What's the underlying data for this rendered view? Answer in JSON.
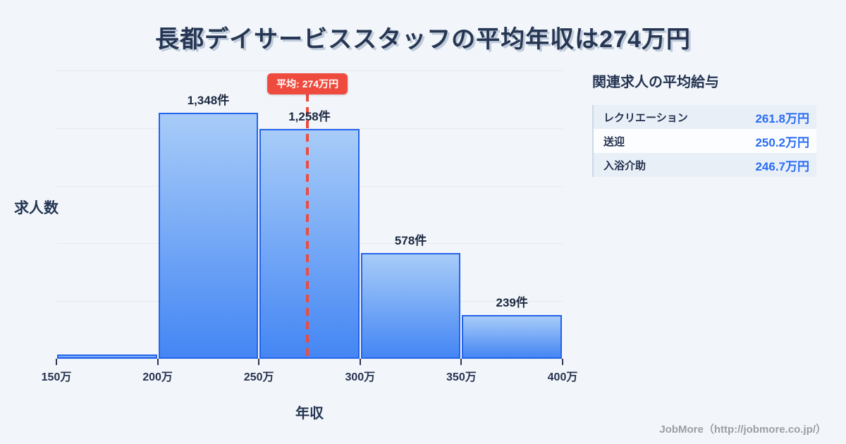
{
  "title": "長都デイサービススタッフの平均年収は274万円",
  "chart_data": {
    "type": "bar",
    "subtype": "histogram",
    "title": "長都デイサービススタッフの平均年収は274万円",
    "xlabel": "年収",
    "ylabel": "求人数",
    "x_ticks": [
      "150万",
      "200万",
      "250万",
      "300万",
      "350万",
      "400万"
    ],
    "x_range": [
      150,
      400
    ],
    "ylim": [
      0,
      1580
    ],
    "grid": true,
    "gridline_count": 6,
    "bins": [
      {
        "range": "150万-200万",
        "value": 25,
        "label": ""
      },
      {
        "range": "200万-250万",
        "value": 1348,
        "label": "1,348件"
      },
      {
        "range": "250万-300万",
        "value": 1258,
        "label": "1,258件"
      },
      {
        "range": "300万-350万",
        "value": 578,
        "label": "578件"
      },
      {
        "range": "350万-400万",
        "value": 239,
        "label": "239件"
      }
    ],
    "average": {
      "value": 274,
      "label": "平均: 274万円"
    }
  },
  "side_panel": {
    "heading": "関連求人の平均給与",
    "rows": [
      {
        "label": "レクリエーション",
        "value": "261.8万円"
      },
      {
        "label": "送迎",
        "value": "250.2万円"
      },
      {
        "label": "入浴介助",
        "value": "246.7万円"
      }
    ]
  },
  "footer": {
    "credit": "JobMore（http://jobmore.co.jp/）"
  },
  "colors": {
    "background": "#f2f6fa",
    "title_text": "#263653",
    "bar_border": "#2563eb",
    "bar_fill_top": "#a8ccf8",
    "bar_fill_bottom": "#4486f4",
    "average_red": "#ee4b3e",
    "value_blue": "#2a6df5",
    "grid": "#e5eaf2",
    "row_alt_bg": "#e9eff7",
    "footer_gray": "#9a9fa6"
  }
}
